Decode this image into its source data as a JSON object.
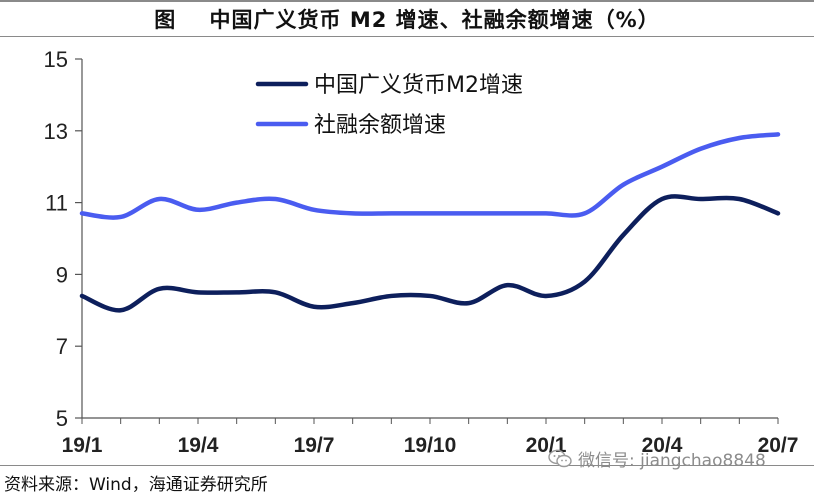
{
  "title": "图    中国广义货币 M2 增速、社融余额增速（%）",
  "source": "资料来源：Wind，海通证券研究所",
  "watermark": "微信号: jiangchao8848",
  "chart_data": {
    "type": "line",
    "title": "中国广义货币 M2 增速、社融余额增速（%）",
    "ylim": [
      5,
      15
    ],
    "yticks": [
      5,
      7,
      9,
      11,
      13,
      15
    ],
    "xlabels": [
      "19/1",
      "19/4",
      "19/7",
      "19/10",
      "20/1",
      "20/4",
      "20/7"
    ],
    "x": [
      "19/1",
      "19/2",
      "19/3",
      "19/4",
      "19/5",
      "19/6",
      "19/7",
      "19/8",
      "19/9",
      "19/10",
      "19/11",
      "19/12",
      "20/1",
      "20/2",
      "20/3",
      "20/4",
      "20/5",
      "20/6",
      "20/7"
    ],
    "legend_position": "top-center",
    "series": [
      {
        "name": "中国广义货币M2增速",
        "color": "#0d1f5c",
        "values": [
          8.4,
          8.0,
          8.6,
          8.5,
          8.5,
          8.5,
          8.1,
          8.2,
          8.4,
          8.4,
          8.2,
          8.7,
          8.4,
          8.8,
          10.1,
          11.1,
          11.1,
          11.1,
          10.7
        ]
      },
      {
        "name": "社融余额增速",
        "color": "#4a5cf0",
        "values": [
          10.7,
          10.6,
          11.1,
          10.8,
          11.0,
          11.1,
          10.8,
          10.7,
          10.7,
          10.7,
          10.7,
          10.7,
          10.7,
          10.7,
          11.5,
          12.0,
          12.5,
          12.8,
          12.9
        ]
      }
    ]
  }
}
